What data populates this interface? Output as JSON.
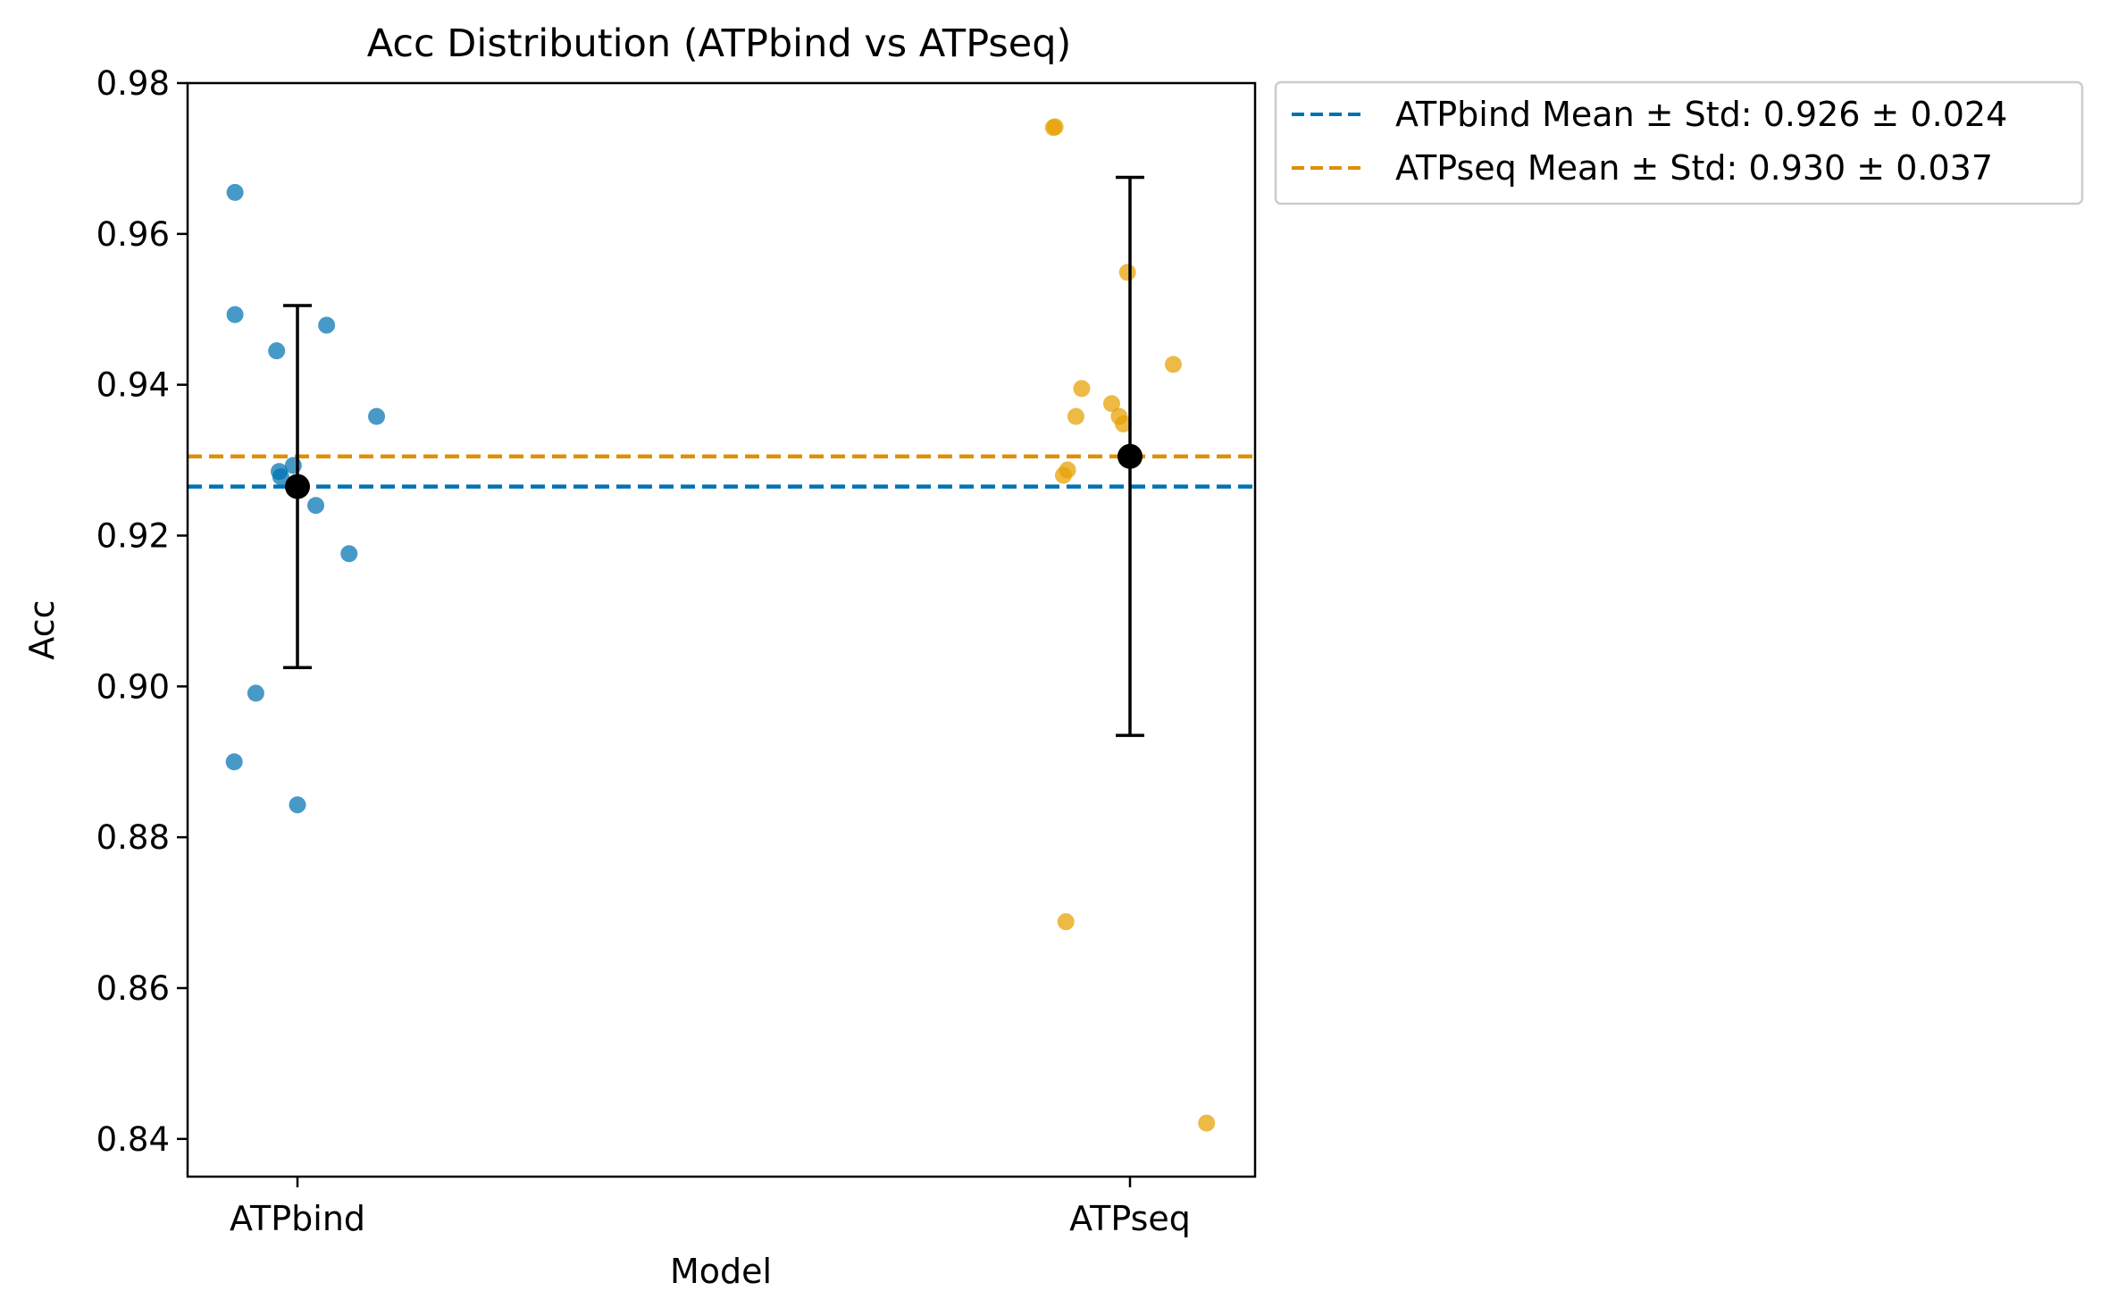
{
  "chart_data": {
    "type": "scatter",
    "title": "Acc Distribution (ATPbind vs ATPseq)",
    "xlabel": "Model",
    "ylabel": "Acc",
    "categories": [
      "ATPbind",
      "ATPseq"
    ],
    "ylim": [
      0.835,
      0.98
    ],
    "yticks": [
      0.84,
      0.86,
      0.88,
      0.9,
      0.92,
      0.94,
      0.96,
      0.98
    ],
    "ytick_labels": [
      "0.84",
      "0.86",
      "0.88",
      "0.90",
      "0.92",
      "0.94",
      "0.96",
      "0.98"
    ],
    "grid": false,
    "legend_position": "outside-top-right",
    "series": [
      {
        "name": "ATPbind",
        "color": "#0072B2",
        "points": [
          {
            "jitter": -0.075,
            "y": 0.9655
          },
          {
            "jitter": -0.075,
            "y": 0.9493
          },
          {
            "jitter": -0.025,
            "y": 0.9445
          },
          {
            "jitter": 0.035,
            "y": 0.9479
          },
          {
            "jitter": 0.095,
            "y": 0.9358
          },
          {
            "jitter": -0.022,
            "y": 0.9285
          },
          {
            "jitter": -0.02,
            "y": 0.9278
          },
          {
            "jitter": -0.005,
            "y": 0.9293
          },
          {
            "jitter": 0.022,
            "y": 0.924
          },
          {
            "jitter": 0.062,
            "y": 0.9176
          },
          {
            "jitter": -0.05,
            "y": 0.8991
          },
          {
            "jitter": -0.076,
            "y": 0.89
          },
          {
            "jitter": 0.0,
            "y": 0.8843
          }
        ],
        "mean": 0.9265,
        "std": 0.024,
        "legend_label": "ATPbind Mean ± Std: 0.926 ± 0.024"
      },
      {
        "name": "ATPseq",
        "color": "#E69F00",
        "line_color": "#DE8F05",
        "points": [
          {
            "jitter": -0.092,
            "y": 0.9741
          },
          {
            "jitter": -0.09,
            "y": 0.9742
          },
          {
            "jitter": -0.003,
            "y": 0.9549
          },
          {
            "jitter": 0.052,
            "y": 0.9427
          },
          {
            "jitter": -0.058,
            "y": 0.9395
          },
          {
            "jitter": -0.022,
            "y": 0.9375
          },
          {
            "jitter": -0.065,
            "y": 0.9358
          },
          {
            "jitter": -0.013,
            "y": 0.9358
          },
          {
            "jitter": -0.008,
            "y": 0.9348
          },
          {
            "jitter": -0.075,
            "y": 0.9287
          },
          {
            "jitter": -0.08,
            "y": 0.928
          },
          {
            "jitter": -0.077,
            "y": 0.8688
          },
          {
            "jitter": 0.092,
            "y": 0.8421
          }
        ],
        "mean": 0.9305,
        "std": 0.037,
        "legend_label": "ATPseq Mean ± Std: 0.930 ± 0.037"
      }
    ]
  }
}
